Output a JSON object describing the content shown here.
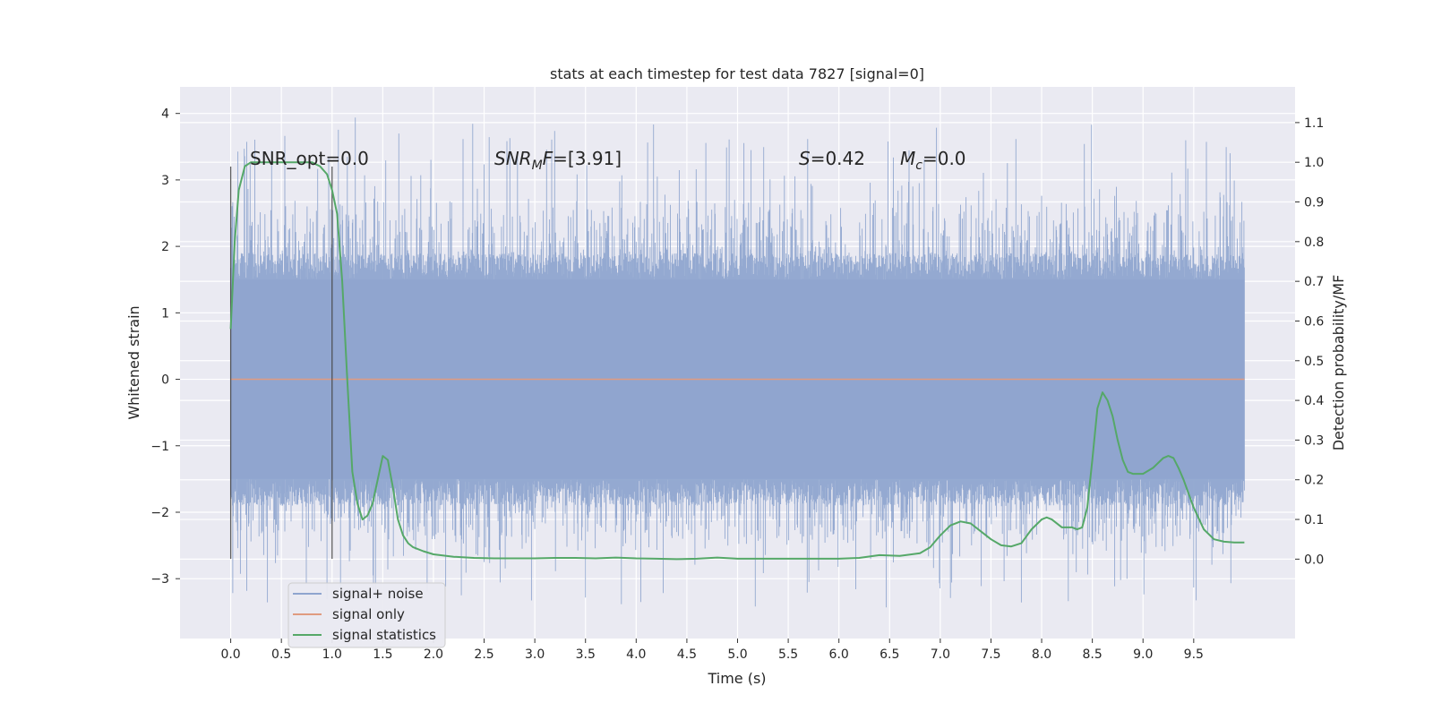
{
  "chart_data": {
    "type": "line",
    "title": "stats at each timestep for test data 7827 [signal=0]",
    "xlabel": "Time (s)",
    "ylabel": "Whitened strain",
    "ylabel_right": "Detection probability/MF",
    "xlim": [
      -0.5,
      10.5
    ],
    "ylim": [
      -3.9,
      4.4
    ],
    "ylim_right": [
      -0.2,
      1.19
    ],
    "x_ticks": [
      "0.0",
      "0.5",
      "1.0",
      "1.5",
      "2.0",
      "2.5",
      "3.0",
      "3.5",
      "4.0",
      "4.5",
      "5.0",
      "5.5",
      "6.0",
      "6.5",
      "7.0",
      "7.5",
      "8.0",
      "8.5",
      "9.0",
      "9.5"
    ],
    "y_ticks": [
      "−3",
      "−2",
      "−1",
      "0",
      "1",
      "2",
      "3",
      "4"
    ],
    "y_right_ticks": [
      "0.0",
      "0.1",
      "0.2",
      "0.3",
      "0.4",
      "0.5",
      "0.6",
      "0.7",
      "0.8",
      "0.9",
      "1.0",
      "1.1"
    ],
    "grid": true,
    "legend_position": "lower-left",
    "annotations": {
      "snr_opt": "SNR_opt=0.0",
      "snr_mf_sym": "SNR",
      "snr_mf_sub": "M",
      "snr_mf_sym2": "F",
      "snr_mf_val": "=[3.91]",
      "s_sym": "S",
      "s_val": "=0.42",
      "mc_sym": "M",
      "mc_sub": "c",
      "mc_val": "=0.0"
    },
    "markers": [
      0.0,
      1.0
    ],
    "noise_band": {
      "x_start": 0.0,
      "x_end": 10.0,
      "typical_min": -1.5,
      "typical_max": 1.5,
      "peak_max": 4.05,
      "peak_min": -3.6
    },
    "series": [
      {
        "name": "signal+ noise",
        "color": "#8fa5cf",
        "x_range": [
          0.0,
          10.0
        ],
        "seed": 7827
      },
      {
        "name": "signal only",
        "color": "#e09b80",
        "x": [
          0.0,
          10.0
        ],
        "y": [
          0.0,
          0.0
        ]
      },
      {
        "name": "signal statistics",
        "color": "#55a868",
        "axis": "right",
        "x": [
          0.0,
          0.04,
          0.08,
          0.14,
          0.2,
          0.3,
          0.4,
          0.5,
          0.6,
          0.7,
          0.8,
          0.88,
          0.95,
          1.0,
          1.05,
          1.1,
          1.15,
          1.2,
          1.25,
          1.3,
          1.35,
          1.4,
          1.45,
          1.5,
          1.55,
          1.6,
          1.65,
          1.7,
          1.75,
          1.8,
          1.9,
          2.0,
          2.2,
          2.4,
          2.6,
          2.8,
          3.0,
          3.2,
          3.4,
          3.6,
          3.8,
          4.0,
          4.2,
          4.4,
          4.6,
          4.8,
          5.0,
          5.2,
          5.4,
          5.6,
          5.8,
          6.0,
          6.2,
          6.4,
          6.6,
          6.8,
          6.9,
          7.0,
          7.1,
          7.2,
          7.3,
          7.4,
          7.5,
          7.6,
          7.7,
          7.8,
          7.9,
          8.0,
          8.05,
          8.1,
          8.2,
          8.3,
          8.35,
          8.4,
          8.45,
          8.5,
          8.55,
          8.6,
          8.65,
          8.7,
          8.75,
          8.8,
          8.85,
          8.9,
          9.0,
          9.1,
          9.2,
          9.25,
          9.3,
          9.35,
          9.4,
          9.5,
          9.6,
          9.7,
          9.8,
          9.9,
          10.0
        ],
        "y": [
          0.58,
          0.8,
          0.93,
          0.99,
          1.0,
          1.0,
          1.0,
          1.0,
          1.0,
          1.0,
          1.0,
          0.99,
          0.97,
          0.93,
          0.87,
          0.7,
          0.45,
          0.22,
          0.14,
          0.1,
          0.11,
          0.14,
          0.2,
          0.26,
          0.25,
          0.18,
          0.1,
          0.06,
          0.04,
          0.03,
          0.02,
          0.012,
          0.006,
          0.003,
          0.002,
          0.002,
          0.002,
          0.003,
          0.003,
          0.002,
          0.004,
          0.002,
          0.001,
          0.0,
          0.001,
          0.004,
          0.001,
          0.001,
          0.001,
          0.001,
          0.001,
          0.001,
          0.003,
          0.01,
          0.008,
          0.015,
          0.03,
          0.06,
          0.085,
          0.095,
          0.09,
          0.07,
          0.05,
          0.035,
          0.032,
          0.04,
          0.075,
          0.1,
          0.105,
          0.1,
          0.08,
          0.08,
          0.075,
          0.08,
          0.13,
          0.25,
          0.38,
          0.42,
          0.4,
          0.36,
          0.3,
          0.25,
          0.22,
          0.215,
          0.215,
          0.23,
          0.255,
          0.26,
          0.255,
          0.23,
          0.2,
          0.13,
          0.075,
          0.05,
          0.044,
          0.042,
          0.042
        ]
      }
    ]
  }
}
